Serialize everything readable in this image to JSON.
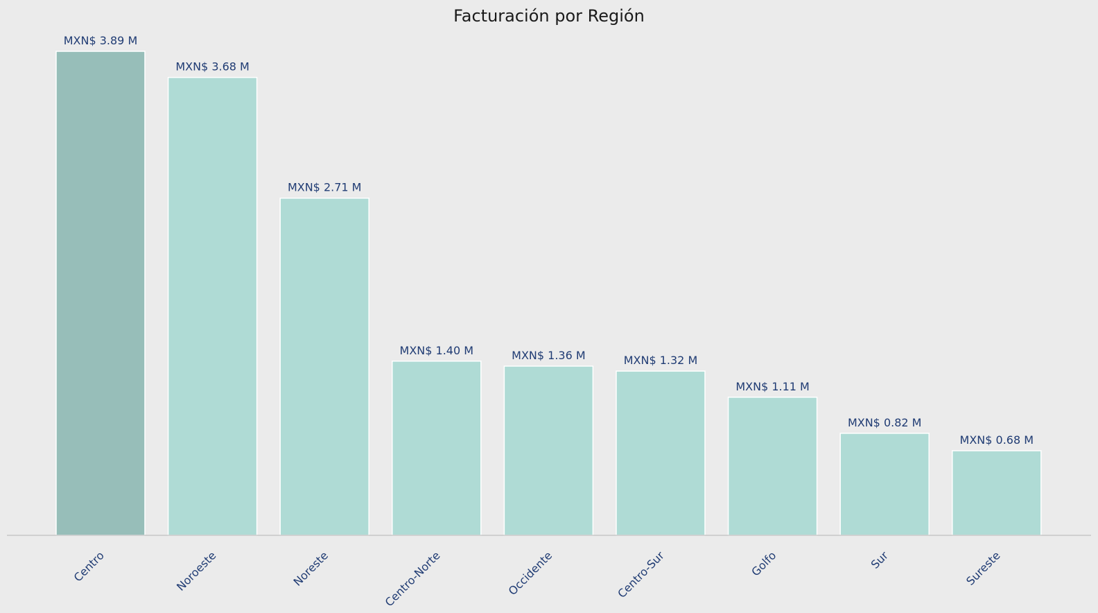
{
  "chart_data": {
    "type": "bar",
    "title": "Facturación por Región",
    "xlabel": "",
    "ylabel": "",
    "categories": [
      "Centro",
      "Noroeste",
      "Noreste",
      "Centro-Norte",
      "Occidente",
      "Centro-Sur",
      "Golfo",
      "Sur",
      "Sureste"
    ],
    "values": [
      3.89,
      3.68,
      2.71,
      1.4,
      1.36,
      1.32,
      1.11,
      0.82,
      0.68
    ],
    "value_labels": [
      "MXN$ 3.89 M",
      "MXN$ 3.68 M",
      "MXN$ 2.71 M",
      "MXN$ 1.40 M",
      "MXN$ 1.36 M",
      "MXN$ 1.32 M",
      "MXN$ 1.11 M",
      "MXN$ 0.82 M",
      "MXN$ 0.68 M"
    ],
    "unit": "MXN$ M",
    "ylim": [
      0,
      3.89
    ],
    "grid": false,
    "legend": "none",
    "colors": {
      "background": "#ebebeb",
      "highlight_bar": "#97beb9",
      "bar": "#afdbd5",
      "bar_edge": "#ffffff",
      "label_text": "#1f3b73",
      "title_text": "#1a1a1a",
      "axis_line": "#c8c8c8"
    }
  }
}
